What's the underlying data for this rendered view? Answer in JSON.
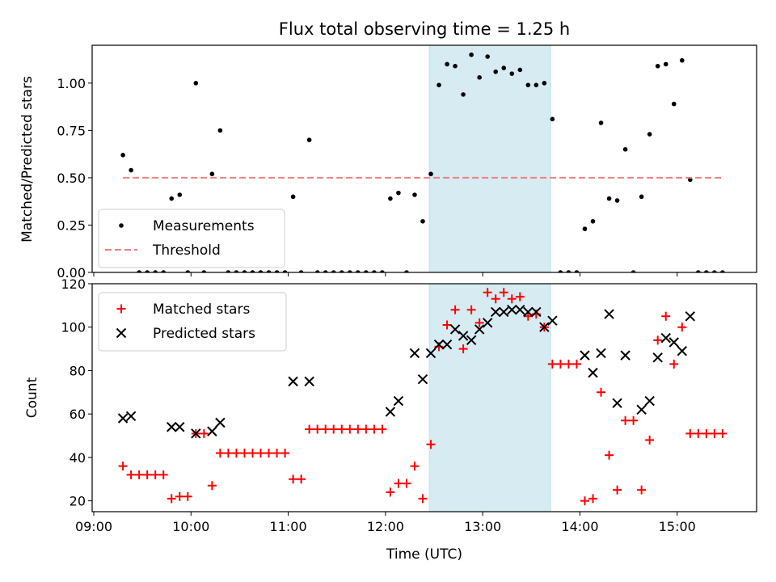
{
  "chart_data": [
    {
      "type": "scatter",
      "title": "Flux total observing time = 1.25 h",
      "xlabel": "",
      "ylabel": "Matched/Predicted stars",
      "ylim": [
        0,
        1.2
      ],
      "yticks": [
        "0.00",
        "0.25",
        "0.50",
        "0.75",
        "1.00"
      ],
      "shaded_region": {
        "x_start": "12:27",
        "x_end": "13:42",
        "color": "#add8e6"
      },
      "legend": {
        "position": "lower-left",
        "entries": [
          "Measurements",
          "Threshold"
        ]
      },
      "series": [
        {
          "name": "Measurements",
          "marker": "dot",
          "color": "#000000",
          "points": [
            [
              "09:18",
              0.62
            ],
            [
              "09:23",
              0.54
            ],
            [
              "09:28",
              0.0
            ],
            [
              "09:33",
              0.0
            ],
            [
              "09:38",
              0.0
            ],
            [
              "09:43",
              0.0
            ],
            [
              "09:48",
              0.39
            ],
            [
              "09:53",
              0.41
            ],
            [
              "09:58",
              0.0
            ],
            [
              "10:03",
              1.0
            ],
            [
              "10:08",
              0.0
            ],
            [
              "10:13",
              0.52
            ],
            [
              "10:18",
              0.75
            ],
            [
              "10:23",
              0.0
            ],
            [
              "10:28",
              0.0
            ],
            [
              "10:33",
              0.0
            ],
            [
              "10:38",
              0.0
            ],
            [
              "10:43",
              0.0
            ],
            [
              "10:48",
              0.0
            ],
            [
              "10:53",
              0.0
            ],
            [
              "10:58",
              0.0
            ],
            [
              "11:03",
              0.4
            ],
            [
              "11:08",
              0.0
            ],
            [
              "11:13",
              0.7
            ],
            [
              "11:18",
              0.0
            ],
            [
              "11:23",
              0.0
            ],
            [
              "11:28",
              0.0
            ],
            [
              "11:33",
              0.0
            ],
            [
              "11:38",
              0.0
            ],
            [
              "11:43",
              0.0
            ],
            [
              "11:48",
              0.0
            ],
            [
              "11:53",
              0.0
            ],
            [
              "11:58",
              0.0
            ],
            [
              "12:03",
              0.39
            ],
            [
              "12:08",
              0.42
            ],
            [
              "12:13",
              0.0
            ],
            [
              "12:18",
              0.41
            ],
            [
              "12:23",
              0.27
            ],
            [
              "12:28",
              0.52
            ],
            [
              "12:33",
              0.99
            ],
            [
              "12:38",
              1.1
            ],
            [
              "12:43",
              1.09
            ],
            [
              "12:48",
              0.94
            ],
            [
              "12:53",
              1.15
            ],
            [
              "12:58",
              1.03
            ],
            [
              "13:03",
              1.14
            ],
            [
              "13:08",
              1.06
            ],
            [
              "13:13",
              1.08
            ],
            [
              "13:18",
              1.05
            ],
            [
              "13:23",
              1.07
            ],
            [
              "13:28",
              0.99
            ],
            [
              "13:33",
              0.99
            ],
            [
              "13:38",
              1.0
            ],
            [
              "13:43",
              0.81
            ],
            [
              "13:48",
              0.0
            ],
            [
              "13:53",
              0.0
            ],
            [
              "13:58",
              0.0
            ],
            [
              "14:03",
              0.23
            ],
            [
              "14:08",
              0.27
            ],
            [
              "14:13",
              0.79
            ],
            [
              "14:18",
              0.39
            ],
            [
              "14:23",
              0.38
            ],
            [
              "14:28",
              0.65
            ],
            [
              "14:33",
              0.0
            ],
            [
              "14:38",
              0.4
            ],
            [
              "14:43",
              0.73
            ],
            [
              "14:48",
              1.09
            ],
            [
              "14:53",
              1.1
            ],
            [
              "14:58",
              0.89
            ],
            [
              "15:03",
              1.12
            ],
            [
              "15:08",
              0.49
            ],
            [
              "15:13",
              0.0
            ],
            [
              "15:18",
              0.0
            ],
            [
              "15:23",
              0.0
            ],
            [
              "15:28",
              0.0
            ]
          ]
        },
        {
          "name": "Threshold",
          "type": "line",
          "style": "dashed",
          "color": "#f08080",
          "points": [
            [
              "09:18",
              0.5
            ],
            [
              "15:28",
              0.5
            ]
          ]
        }
      ]
    },
    {
      "type": "scatter",
      "title": "",
      "xlabel": "Time (UTC)",
      "ylabel": "Count",
      "ylim": [
        15,
        120
      ],
      "yticks": [
        "20",
        "40",
        "60",
        "80",
        "100",
        "120"
      ],
      "xticks": [
        "09:00",
        "10:00",
        "11:00",
        "12:00",
        "13:00",
        "14:00",
        "15:00"
      ],
      "shaded_region": {
        "x_start": "12:27",
        "x_end": "13:42",
        "color": "#add8e6"
      },
      "legend": {
        "position": "top-left",
        "entries": [
          "Matched stars",
          "Predicted stars"
        ]
      },
      "series": [
        {
          "name": "Matched stars",
          "marker": "plus",
          "color": "#ff0000",
          "points": [
            [
              "09:18",
              36
            ],
            [
              "09:23",
              32
            ],
            [
              "09:28",
              32
            ],
            [
              "09:33",
              32
            ],
            [
              "09:38",
              32
            ],
            [
              "09:43",
              32
            ],
            [
              "09:48",
              21
            ],
            [
              "09:53",
              22
            ],
            [
              "09:58",
              22
            ],
            [
              "10:03",
              51
            ],
            [
              "10:08",
              51
            ],
            [
              "10:13",
              27
            ],
            [
              "10:18",
              42
            ],
            [
              "10:23",
              42
            ],
            [
              "10:28",
              42
            ],
            [
              "10:33",
              42
            ],
            [
              "10:38",
              42
            ],
            [
              "10:43",
              42
            ],
            [
              "10:48",
              42
            ],
            [
              "10:53",
              42
            ],
            [
              "10:58",
              42
            ],
            [
              "11:03",
              30
            ],
            [
              "11:08",
              30
            ],
            [
              "11:13",
              53
            ],
            [
              "11:18",
              53
            ],
            [
              "11:23",
              53
            ],
            [
              "11:28",
              53
            ],
            [
              "11:33",
              53
            ],
            [
              "11:38",
              53
            ],
            [
              "11:43",
              53
            ],
            [
              "11:48",
              53
            ],
            [
              "11:53",
              53
            ],
            [
              "11:58",
              53
            ],
            [
              "12:03",
              24
            ],
            [
              "12:08",
              28
            ],
            [
              "12:13",
              28
            ],
            [
              "12:18",
              36
            ],
            [
              "12:23",
              21
            ],
            [
              "12:28",
              46
            ],
            [
              "12:33",
              91
            ],
            [
              "12:38",
              101
            ],
            [
              "12:43",
              108
            ],
            [
              "12:48",
              90
            ],
            [
              "12:53",
              108
            ],
            [
              "12:58",
              102
            ],
            [
              "13:03",
              116
            ],
            [
              "13:08",
              113
            ],
            [
              "13:13",
              116
            ],
            [
              "13:18",
              113
            ],
            [
              "13:23",
              114
            ],
            [
              "13:28",
              105
            ],
            [
              "13:33",
              106
            ],
            [
              "13:38",
              100
            ],
            [
              "13:43",
              83
            ],
            [
              "13:48",
              83
            ],
            [
              "13:53",
              83
            ],
            [
              "13:58",
              83
            ],
            [
              "14:03",
              20
            ],
            [
              "14:08",
              21
            ],
            [
              "14:13",
              70
            ],
            [
              "14:18",
              41
            ],
            [
              "14:23",
              25
            ],
            [
              "14:28",
              57
            ],
            [
              "14:33",
              57
            ],
            [
              "14:38",
              25
            ],
            [
              "14:43",
              48
            ],
            [
              "14:48",
              94
            ],
            [
              "14:53",
              105
            ],
            [
              "14:58",
              83
            ],
            [
              "15:03",
              100
            ],
            [
              "15:08",
              51
            ],
            [
              "15:13",
              51
            ],
            [
              "15:18",
              51
            ],
            [
              "15:23",
              51
            ],
            [
              "15:28",
              51
            ]
          ]
        },
        {
          "name": "Predicted stars",
          "marker": "x",
          "color": "#000000",
          "points": [
            [
              "09:18",
              58
            ],
            [
              "09:23",
              59
            ],
            [
              "09:48",
              54
            ],
            [
              "09:53",
              54
            ],
            [
              "10:03",
              51
            ],
            [
              "10:13",
              52
            ],
            [
              "10:18",
              56
            ],
            [
              "11:03",
              75
            ],
            [
              "11:13",
              75
            ],
            [
              "12:03",
              61
            ],
            [
              "12:08",
              66
            ],
            [
              "12:18",
              88
            ],
            [
              "12:23",
              76
            ],
            [
              "12:28",
              88
            ],
            [
              "12:33",
              92
            ],
            [
              "12:38",
              92
            ],
            [
              "12:43",
              99
            ],
            [
              "12:48",
              96
            ],
            [
              "12:53",
              94
            ],
            [
              "12:58",
              99
            ],
            [
              "13:03",
              102
            ],
            [
              "13:08",
              107
            ],
            [
              "13:13",
              107
            ],
            [
              "13:18",
              108
            ],
            [
              "13:23",
              108
            ],
            [
              "13:28",
              107
            ],
            [
              "13:33",
              107
            ],
            [
              "13:38",
              100
            ],
            [
              "13:43",
              103
            ],
            [
              "14:03",
              87
            ],
            [
              "14:08",
              79
            ],
            [
              "14:13",
              88
            ],
            [
              "14:18",
              106
            ],
            [
              "14:23",
              65
            ],
            [
              "14:28",
              87
            ],
            [
              "14:38",
              62
            ],
            [
              "14:43",
              66
            ],
            [
              "14:48",
              86
            ],
            [
              "14:53",
              95
            ],
            [
              "14:58",
              93
            ],
            [
              "15:03",
              89
            ],
            [
              "15:08",
              105
            ]
          ]
        }
      ]
    }
  ]
}
